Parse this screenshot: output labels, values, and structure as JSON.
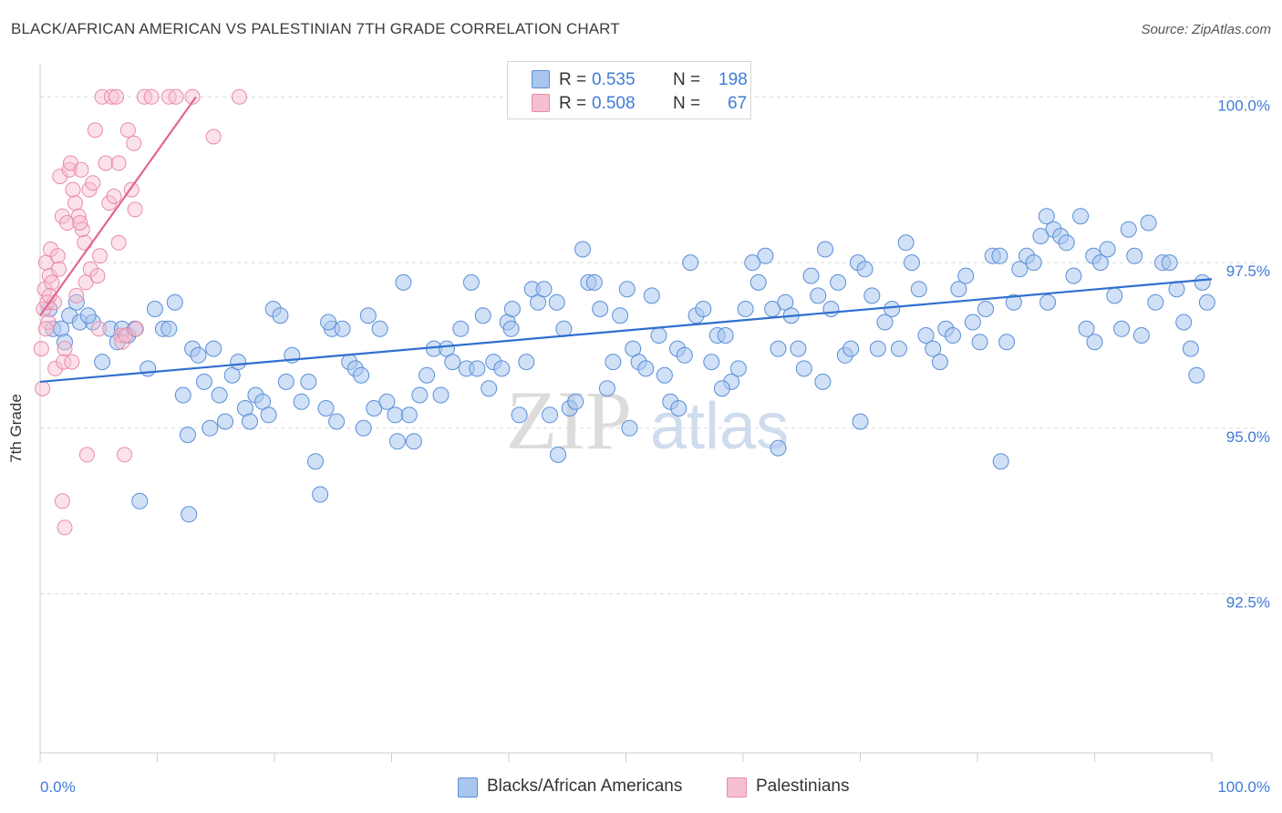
{
  "header": {
    "title": "BLACK/AFRICAN AMERICAN VS PALESTINIAN 7TH GRADE CORRELATION CHART",
    "source": "Source: ZipAtlas.com"
  },
  "legend": {
    "rows": [
      {
        "r_label": "R =",
        "r_value": "0.535",
        "n_label": "N =",
        "n_value": "198"
      },
      {
        "r_label": "R =",
        "r_value": "0.508",
        "n_label": "N =",
        "n_value": "67"
      }
    ],
    "series_names": [
      "Blacks/African Americans",
      "Palestinians"
    ]
  },
  "watermark": {
    "zip": "ZIP",
    "atlas": "atlas"
  },
  "colors": {
    "blue_fill": "#a9c6ef",
    "blue_stroke": "#5b8fd8",
    "blue_line": "#2f6fcf",
    "pink_fill": "#f6bfd1",
    "pink_stroke": "#e98aa9",
    "pink_line": "#e2668f",
    "tick_label": "#3f7bd6",
    "grid": "#d9d9d9"
  },
  "chart_data": {
    "type": "scatter",
    "ylabel": "7th Grade",
    "xlim": [
      0,
      100
    ],
    "ylim": [
      90.1,
      100.5
    ],
    "x_tick_labels": [
      "0.0%",
      "100.0%"
    ],
    "y_ticks": [
      92.5,
      95.0,
      97.5,
      100.0
    ],
    "y_tick_labels": [
      "92.5%",
      "95.0%",
      "97.5%",
      "100.0%"
    ],
    "grid": "horizontal dashed",
    "series": [
      {
        "name": "Blacks/African Americans",
        "color": "#a9c6ef",
        "trend": {
          "x": [
            0,
            100
          ],
          "y": [
            95.7,
            97.25
          ]
        },
        "points": [
          [
            0.8,
            96.8
          ],
          [
            1.1,
            96.5
          ],
          [
            1.8,
            96.5
          ],
          [
            2.1,
            96.3
          ],
          [
            2.5,
            96.7
          ],
          [
            3.1,
            96.9
          ],
          [
            3.4,
            96.6
          ],
          [
            4.5,
            96.6
          ],
          [
            5.3,
            96.0
          ],
          [
            6.0,
            96.5
          ],
          [
            7.0,
            96.5
          ],
          [
            7.5,
            96.4
          ],
          [
            8.1,
            96.5
          ],
          [
            8.5,
            93.9
          ],
          [
            9.2,
            95.9
          ],
          [
            9.8,
            96.8
          ],
          [
            10.5,
            96.5
          ],
          [
            11.0,
            96.5
          ],
          [
            11.5,
            96.9
          ],
          [
            12.2,
            95.5
          ],
          [
            12.6,
            94.9
          ],
          [
            13.0,
            96.2
          ],
          [
            13.5,
            96.1
          ],
          [
            14.0,
            95.7
          ],
          [
            14.5,
            95.0
          ],
          [
            14.8,
            96.2
          ],
          [
            15.3,
            95.5
          ],
          [
            15.8,
            95.1
          ],
          [
            16.4,
            95.8
          ],
          [
            16.9,
            96.0
          ],
          [
            17.5,
            95.3
          ],
          [
            17.9,
            95.1
          ],
          [
            18.4,
            95.5
          ],
          [
            19.0,
            95.4
          ],
          [
            19.5,
            95.2
          ],
          [
            19.9,
            96.8
          ],
          [
            20.5,
            96.7
          ],
          [
            21.0,
            95.7
          ],
          [
            21.5,
            96.1
          ],
          [
            22.3,
            95.4
          ],
          [
            22.9,
            95.7
          ],
          [
            23.5,
            94.5
          ],
          [
            23.9,
            94.0
          ],
          [
            24.4,
            95.3
          ],
          [
            24.9,
            96.5
          ],
          [
            25.3,
            95.1
          ],
          [
            25.8,
            96.5
          ],
          [
            26.4,
            96.0
          ],
          [
            26.9,
            95.9
          ],
          [
            27.4,
            95.8
          ],
          [
            28.0,
            96.7
          ],
          [
            28.5,
            95.3
          ],
          [
            29.0,
            96.5
          ],
          [
            29.6,
            95.4
          ],
          [
            30.3,
            95.2
          ],
          [
            31.0,
            97.2
          ],
          [
            31.5,
            95.2
          ],
          [
            31.9,
            94.8
          ],
          [
            32.4,
            95.5
          ],
          [
            33.0,
            95.8
          ],
          [
            33.6,
            96.2
          ],
          [
            34.2,
            95.5
          ],
          [
            34.7,
            96.2
          ],
          [
            35.2,
            96.0
          ],
          [
            35.9,
            96.5
          ],
          [
            36.4,
            95.9
          ],
          [
            36.8,
            97.2
          ],
          [
            37.3,
            95.9
          ],
          [
            37.8,
            96.7
          ],
          [
            38.3,
            95.6
          ],
          [
            38.7,
            96.0
          ],
          [
            39.4,
            95.9
          ],
          [
            39.9,
            96.6
          ],
          [
            40.3,
            96.8
          ],
          [
            40.9,
            95.2
          ],
          [
            41.5,
            96.0
          ],
          [
            42.0,
            97.1
          ],
          [
            42.5,
            96.9
          ],
          [
            43.0,
            97.1
          ],
          [
            43.5,
            95.2
          ],
          [
            44.1,
            96.9
          ],
          [
            44.7,
            96.5
          ],
          [
            45.2,
            95.3
          ],
          [
            45.7,
            95.4
          ],
          [
            46.3,
            97.7
          ],
          [
            46.8,
            97.2
          ],
          [
            47.3,
            97.2
          ],
          [
            47.8,
            96.8
          ],
          [
            48.4,
            95.6
          ],
          [
            48.9,
            96.0
          ],
          [
            49.5,
            96.7
          ],
          [
            50.1,
            97.1
          ],
          [
            50.6,
            96.2
          ],
          [
            51.1,
            96.0
          ],
          [
            51.7,
            95.9
          ],
          [
            52.2,
            97.0
          ],
          [
            52.8,
            96.4
          ],
          [
            53.3,
            95.8
          ],
          [
            53.8,
            95.4
          ],
          [
            54.4,
            96.2
          ],
          [
            55.0,
            96.1
          ],
          [
            55.5,
            97.5
          ],
          [
            56.0,
            96.7
          ],
          [
            56.6,
            96.8
          ],
          [
            57.3,
            96.0
          ],
          [
            57.8,
            96.4
          ],
          [
            58.5,
            96.4
          ],
          [
            59.0,
            95.7
          ],
          [
            59.6,
            95.9
          ],
          [
            60.2,
            96.8
          ],
          [
            60.8,
            97.5
          ],
          [
            61.3,
            97.2
          ],
          [
            61.9,
            97.6
          ],
          [
            62.5,
            96.8
          ],
          [
            63.0,
            96.2
          ],
          [
            63.6,
            96.9
          ],
          [
            64.1,
            96.7
          ],
          [
            64.7,
            96.2
          ],
          [
            65.2,
            95.9
          ],
          [
            65.8,
            97.3
          ],
          [
            66.4,
            97.0
          ],
          [
            67.0,
            97.7
          ],
          [
            67.5,
            96.8
          ],
          [
            68.1,
            97.2
          ],
          [
            68.7,
            96.1
          ],
          [
            69.2,
            96.2
          ],
          [
            69.8,
            97.5
          ],
          [
            70.4,
            97.4
          ],
          [
            71.0,
            97.0
          ],
          [
            71.5,
            96.2
          ],
          [
            72.1,
            96.6
          ],
          [
            72.7,
            96.8
          ],
          [
            73.3,
            96.2
          ],
          [
            73.9,
            97.8
          ],
          [
            74.4,
            97.5
          ],
          [
            75.0,
            97.1
          ],
          [
            75.6,
            96.4
          ],
          [
            76.2,
            96.2
          ],
          [
            76.8,
            96.0
          ],
          [
            77.3,
            96.5
          ],
          [
            77.9,
            96.4
          ],
          [
            78.4,
            97.1
          ],
          [
            79.0,
            97.3
          ],
          [
            79.6,
            96.6
          ],
          [
            80.2,
            96.3
          ],
          [
            80.7,
            96.8
          ],
          [
            81.3,
            97.6
          ],
          [
            81.9,
            97.6
          ],
          [
            82.5,
            96.3
          ],
          [
            83.1,
            96.9
          ],
          [
            83.6,
            97.4
          ],
          [
            84.2,
            97.6
          ],
          [
            84.8,
            97.5
          ],
          [
            85.4,
            97.9
          ],
          [
            85.9,
            98.2
          ],
          [
            86.5,
            98.0
          ],
          [
            87.1,
            97.9
          ],
          [
            87.6,
            97.8
          ],
          [
            88.2,
            97.3
          ],
          [
            88.8,
            98.2
          ],
          [
            89.3,
            96.5
          ],
          [
            89.9,
            97.6
          ],
          [
            90.5,
            97.5
          ],
          [
            91.1,
            97.7
          ],
          [
            91.7,
            97.0
          ],
          [
            92.3,
            96.5
          ],
          [
            92.9,
            98.0
          ],
          [
            93.4,
            97.6
          ],
          [
            94.0,
            96.4
          ],
          [
            94.6,
            98.1
          ],
          [
            95.2,
            96.9
          ],
          [
            95.8,
            97.5
          ],
          [
            96.4,
            97.5
          ],
          [
            97.0,
            97.1
          ],
          [
            97.6,
            96.6
          ],
          [
            98.2,
            96.2
          ],
          [
            98.7,
            95.8
          ],
          [
            99.2,
            97.2
          ],
          [
            99.6,
            96.9
          ],
          [
            30.5,
            94.8
          ],
          [
            50.3,
            95.0
          ],
          [
            54.5,
            95.3
          ],
          [
            70.0,
            95.1
          ],
          [
            82.0,
            94.5
          ],
          [
            90.0,
            96.3
          ],
          [
            12.7,
            93.7
          ],
          [
            63.0,
            94.7
          ],
          [
            6.6,
            96.3
          ],
          [
            24.6,
            96.6
          ],
          [
            44.2,
            94.6
          ],
          [
            27.6,
            95.0
          ],
          [
            58.2,
            95.6
          ],
          [
            66.8,
            95.7
          ],
          [
            4.1,
            96.7
          ],
          [
            40.2,
            96.5
          ],
          [
            86.0,
            96.9
          ]
        ]
      },
      {
        "name": "Palestinians",
        "color": "#f6bfd1",
        "trend": {
          "x": [
            0,
            13.3
          ],
          "y": [
            96.7,
            100.0
          ]
        },
        "points": [
          [
            0.1,
            96.2
          ],
          [
            0.2,
            95.6
          ],
          [
            0.3,
            96.8
          ],
          [
            0.4,
            97.1
          ],
          [
            0.5,
            97.5
          ],
          [
            0.6,
            96.9
          ],
          [
            0.7,
            96.6
          ],
          [
            0.8,
            97.3
          ],
          [
            0.9,
            97.7
          ],
          [
            1.0,
            97.2
          ],
          [
            1.2,
            96.9
          ],
          [
            1.3,
            95.9
          ],
          [
            1.5,
            97.6
          ],
          [
            1.7,
            98.8
          ],
          [
            1.9,
            98.2
          ],
          [
            2.1,
            96.2
          ],
          [
            2.3,
            98.1
          ],
          [
            2.5,
            98.9
          ],
          [
            2.6,
            99.0
          ],
          [
            2.8,
            98.6
          ],
          [
            3.0,
            98.4
          ],
          [
            3.1,
            97.0
          ],
          [
            3.3,
            98.2
          ],
          [
            3.5,
            98.9
          ],
          [
            3.6,
            98.0
          ],
          [
            3.8,
            97.8
          ],
          [
            3.9,
            97.2
          ],
          [
            4.0,
            94.6
          ],
          [
            4.2,
            98.6
          ],
          [
            4.3,
            97.4
          ],
          [
            4.5,
            98.7
          ],
          [
            4.7,
            99.5
          ],
          [
            4.9,
            97.3
          ],
          [
            5.1,
            97.6
          ],
          [
            5.3,
            100.0
          ],
          [
            5.6,
            99.0
          ],
          [
            5.9,
            98.4
          ],
          [
            6.1,
            100.0
          ],
          [
            6.3,
            98.5
          ],
          [
            6.5,
            100.0
          ],
          [
            6.7,
            99.0
          ],
          [
            6.9,
            96.4
          ],
          [
            7.0,
            96.3
          ],
          [
            7.2,
            94.6
          ],
          [
            7.5,
            99.5
          ],
          [
            7.8,
            98.6
          ],
          [
            8.0,
            99.3
          ],
          [
            8.2,
            96.5
          ],
          [
            8.9,
            100.0
          ],
          [
            9.5,
            100.0
          ],
          [
            11.0,
            100.0
          ],
          [
            11.6,
            100.0
          ],
          [
            13.0,
            100.0
          ],
          [
            14.8,
            99.4
          ],
          [
            17.0,
            100.0
          ],
          [
            2.0,
            96.0
          ],
          [
            1.9,
            93.9
          ],
          [
            2.1,
            93.5
          ],
          [
            0.5,
            96.5
          ],
          [
            0.8,
            97.0
          ],
          [
            1.6,
            97.4
          ],
          [
            2.7,
            96.0
          ],
          [
            3.4,
            98.1
          ],
          [
            5.0,
            96.5
          ],
          [
            6.7,
            97.8
          ],
          [
            7.3,
            96.4
          ],
          [
            8.1,
            98.3
          ]
        ]
      }
    ]
  }
}
